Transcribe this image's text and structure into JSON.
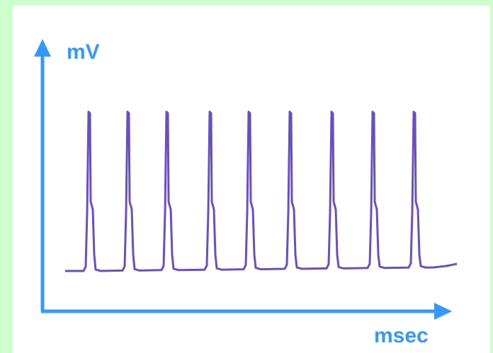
{
  "y_axis_label": "mV",
  "x_axis_label": "msec"
}
